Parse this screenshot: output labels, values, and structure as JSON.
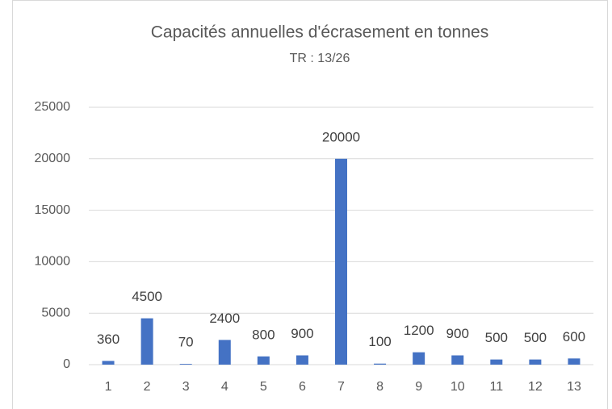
{
  "chart_data": {
    "type": "bar",
    "title": "Capacités annuelles d'écrasement en tonnes",
    "subtitle": "TR : 13/26",
    "categories": [
      "1",
      "2",
      "3",
      "4",
      "5",
      "6",
      "7",
      "8",
      "9",
      "10",
      "11",
      "12",
      "13"
    ],
    "values": [
      360,
      4500,
      70,
      2400,
      800,
      900,
      20000,
      100,
      1200,
      900,
      500,
      500,
      600
    ],
    "color": "#4472c4",
    "ylim": [
      0,
      25000
    ],
    "yticks": [
      0,
      5000,
      10000,
      15000,
      20000,
      25000
    ],
    "grid": true
  }
}
